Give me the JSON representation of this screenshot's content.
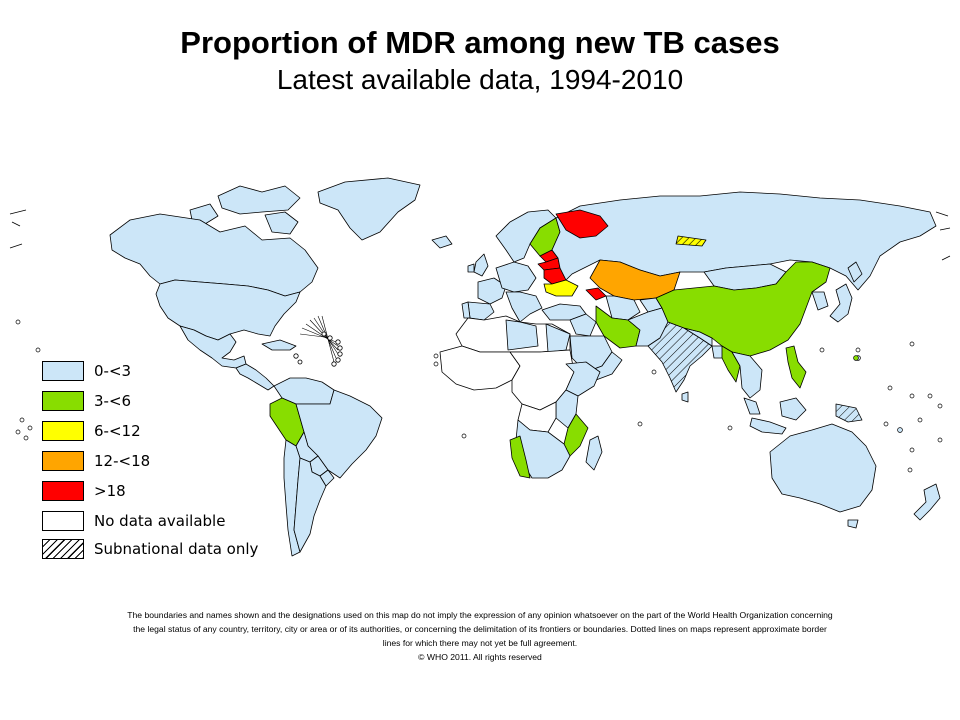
{
  "title": "Proportion of MDR among new TB cases",
  "subtitle": "Latest available data, 1994-2010",
  "colors": {
    "c0": "#cce6f8",
    "c1": "#88dd00",
    "c2": "#ffff00",
    "c3": "#ffa500",
    "c4": "#ff0000",
    "nodata": "#ffffff",
    "border": "#000000"
  },
  "legend": [
    {
      "label": "0-<3",
      "color": "#cce6f8",
      "pattern": false
    },
    {
      "label": "3-<6",
      "color": "#88dd00",
      "pattern": false
    },
    {
      "label": "6-<12",
      "color": "#ffff00",
      "pattern": false
    },
    {
      "label": "12-<18",
      "color": "#ffa500",
      "pattern": false
    },
    {
      "label": ">18",
      "color": "#ff0000",
      "pattern": false
    },
    {
      "label": "No data available",
      "color": "#ffffff",
      "pattern": false
    },
    {
      "label": "Subnational data only",
      "color": "#ffffff",
      "pattern": true
    }
  ],
  "disclaimer": {
    "line1": "The boundaries and names shown and the designations used on this map do not imply the expression of any opinion whatsoever on the part of the World Health Organization concerning",
    "line2": "the legal status of any country,  territory, city or area or of its authorities, or concerning  the delimitation of its frontiers or boundaries.  Dotted lines on maps represent approximate border",
    "line3": "lines for which there may not yet be full agreement.",
    "line4": "© WHO 2011. All rights reserved"
  }
}
